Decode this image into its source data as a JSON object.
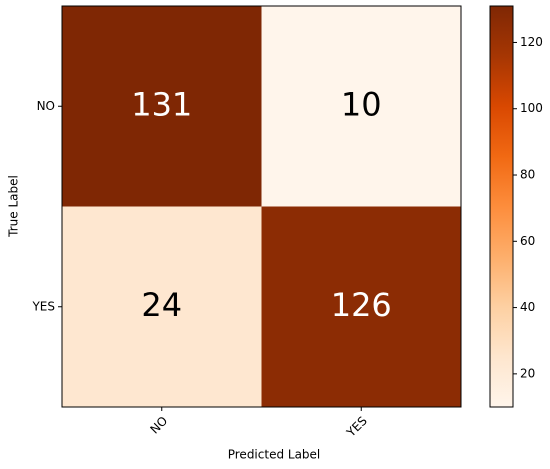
{
  "chart_data": {
    "type": "heatmap",
    "x_categories": [
      "NO",
      "YES"
    ],
    "y_categories": [
      "NO",
      "YES"
    ],
    "values": [
      [
        131,
        10
      ],
      [
        24,
        126
      ]
    ],
    "xlabel": "Predicted Label",
    "ylabel": "True Label",
    "colormap": "Oranges",
    "clim": [
      10,
      131
    ],
    "cticks": [
      20,
      40,
      60,
      80,
      100,
      120
    ]
  }
}
